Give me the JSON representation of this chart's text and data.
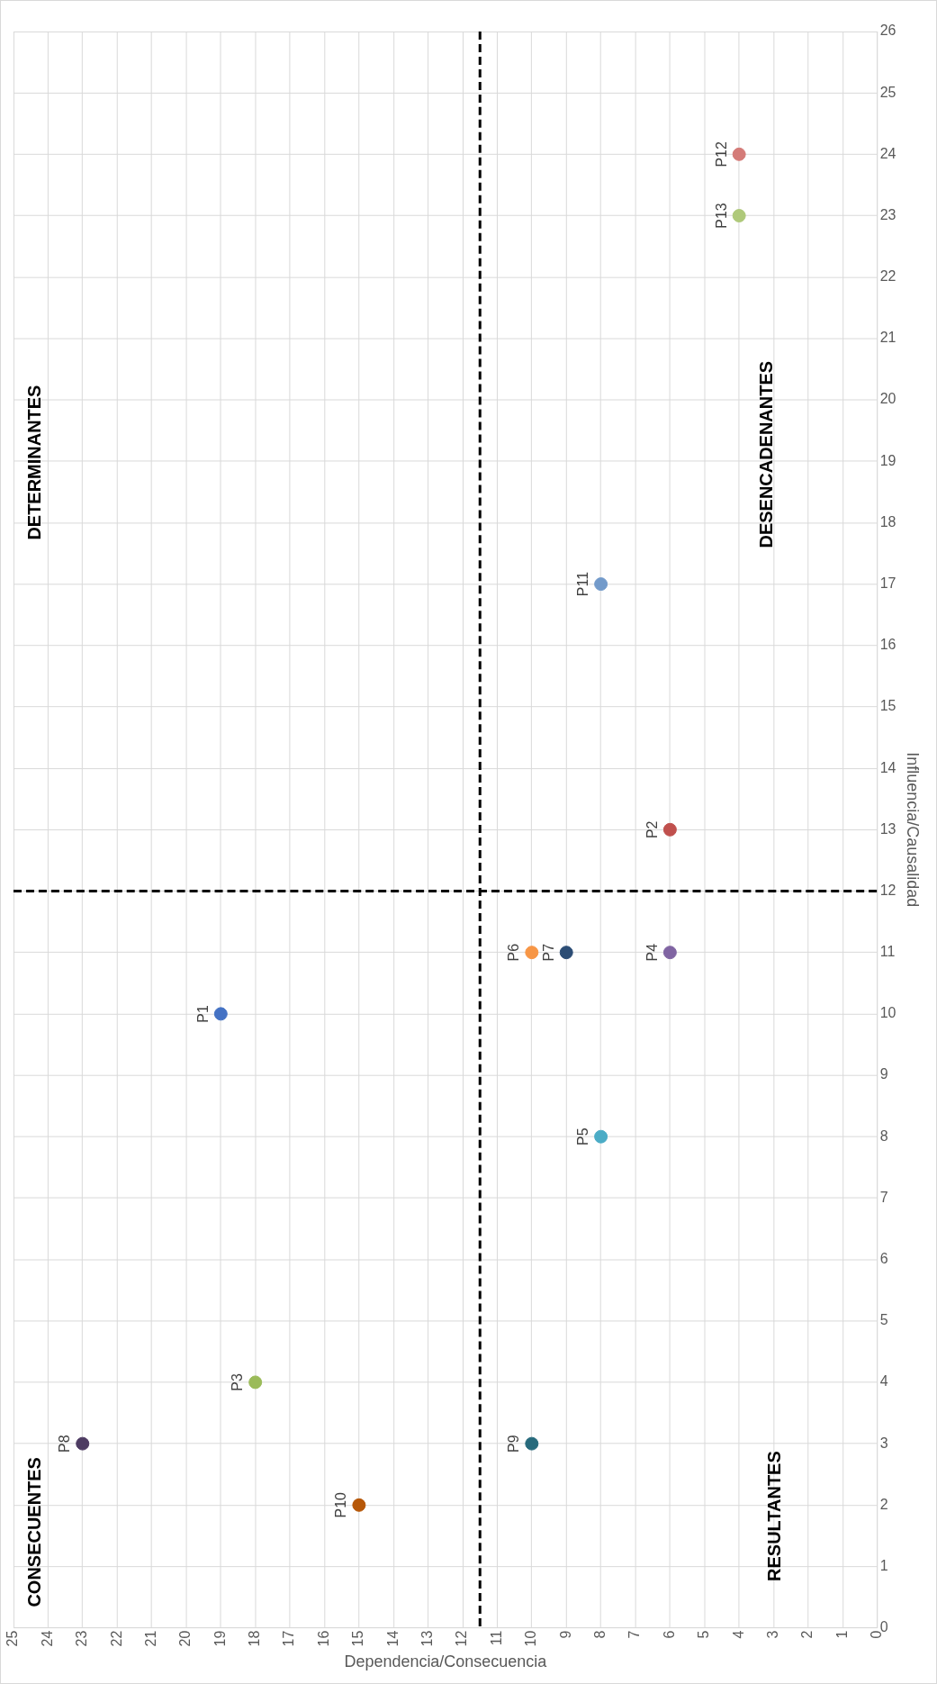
{
  "chart_data": {
    "type": "scatter",
    "xlabel": "Dependencia/Consecuencia",
    "ylabel": "Influencia/Causalidad",
    "xlim": [
      25,
      0
    ],
    "xticks": [
      25,
      24,
      23,
      22,
      21,
      20,
      19,
      18,
      17,
      16,
      15,
      14,
      13,
      12,
      11,
      10,
      9,
      8,
      7,
      6,
      5,
      4,
      3,
      2,
      1,
      0
    ],
    "ylim": [
      0,
      26
    ],
    "yticks": [
      0,
      1,
      2,
      3,
      4,
      5,
      6,
      7,
      8,
      9,
      10,
      11,
      12,
      13,
      14,
      15,
      16,
      17,
      18,
      19,
      20,
      21,
      22,
      23,
      24,
      25,
      26
    ],
    "grid": true,
    "legend": false,
    "marker": "circle",
    "series": [
      {
        "name": "P1",
        "color": "#4472c4",
        "x": [
          19
        ],
        "values": [
          10
        ]
      },
      {
        "name": "P2",
        "color": "#c0504d",
        "x": [
          6
        ],
        "values": [
          13
        ]
      },
      {
        "name": "P3",
        "color": "#9bbb59",
        "x": [
          18
        ],
        "values": [
          4
        ]
      },
      {
        "name": "P4",
        "color": "#8064a2",
        "x": [
          6
        ],
        "values": [
          11
        ]
      },
      {
        "name": "P5",
        "color": "#4bacc6",
        "x": [
          8
        ],
        "values": [
          8
        ]
      },
      {
        "name": "P6",
        "color": "#f79646",
        "x": [
          10
        ],
        "values": [
          11
        ]
      },
      {
        "name": "P7",
        "color": "#2c4d75",
        "x": [
          9
        ],
        "values": [
          11
        ]
      },
      {
        "name": "P8",
        "color": "#4d3b62",
        "x": [
          23
        ],
        "values": [
          3
        ]
      },
      {
        "name": "P9",
        "color": "#276a7c",
        "x": [
          10
        ],
        "values": [
          3
        ]
      },
      {
        "name": "P10",
        "color": "#b65708",
        "x": [
          15
        ],
        "values": [
          2
        ]
      },
      {
        "name": "P11",
        "color": "#729aca",
        "x": [
          8
        ],
        "values": [
          17
        ]
      },
      {
        "name": "P12",
        "color": "#d47b78",
        "x": [
          4
        ],
        "values": [
          24
        ]
      },
      {
        "name": "P13",
        "color": "#afc97a",
        "x": [
          4
        ],
        "values": [
          23
        ]
      }
    ],
    "ref_lines": [
      {
        "axis": "y",
        "value": 12,
        "color": "#000000",
        "line_style": "dashed"
      },
      {
        "axis": "x",
        "value": 11.5,
        "color": "#000000",
        "line_style": "dashed"
      }
    ],
    "annotations": [
      "CONSECUENTES",
      "DETERMINANTES",
      "RESULTANTES",
      "DESENCADENANTES"
    ]
  }
}
